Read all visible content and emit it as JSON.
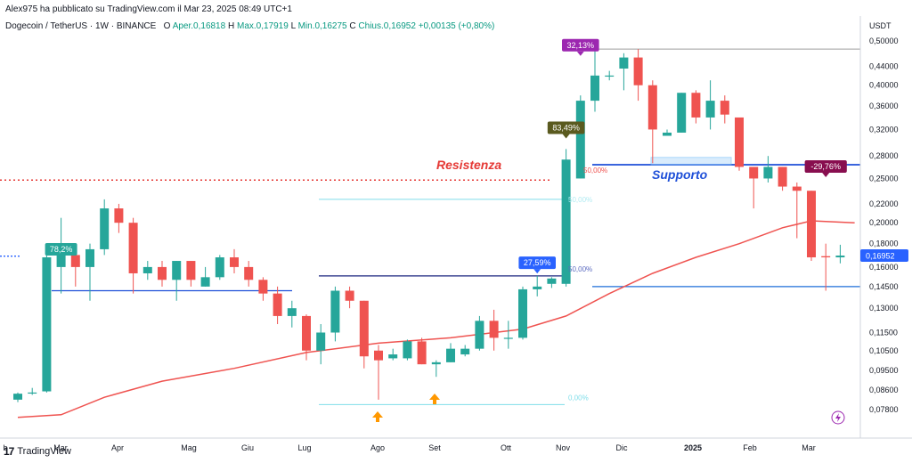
{
  "header": {
    "publish_line": "Alex975 ha pubblicato su TradingView.com il Mar 23, 2025 08:49 UTC+1",
    "symbol": "Dogecoin / TetherUS · 1W · BINANCE",
    "open_label": "O",
    "open_text": "Aper.0,16818",
    "high_label": "H",
    "high_text": "Max.0,17919",
    "low_label": "L",
    "low_text": "Min.0,16275",
    "close_label": "C",
    "close_text": "Chius.0,16952",
    "change_text": "+0,00135 (+0,80%)"
  },
  "footer": {
    "logo_text": "TradingView"
  },
  "colors": {
    "up": "#26a69a",
    "down": "#ef5350",
    "ma": "#ef5350",
    "support": "#1e4fd8",
    "resistance": "#e53935"
  },
  "chart_data": {
    "type": "candlestick",
    "title": "Dogecoin / TetherUS",
    "interval": "1W",
    "exchange": "BINANCE",
    "y_unit": "USDT",
    "y_scale": "log",
    "y_ticks": [
      "0,50000",
      "0,44000",
      "0,40000",
      "0,36000",
      "0,32000",
      "0,28000",
      "0,25000",
      "0,22000",
      "0,20000",
      "0,18000",
      "0,16000",
      "0,14500",
      "0,13000",
      "0,11500",
      "0,10500",
      "0,09500",
      "0,08600",
      "0,07800"
    ],
    "x_ticks": [
      "b",
      "Mar",
      "Apr",
      "Mag",
      "Giu",
      "Lug",
      "Ago",
      "Set",
      "Ott",
      "Nov",
      "Dic",
      "2025",
      "Feb",
      "Mar"
    ],
    "last_price": "0,16952",
    "candles": [
      [
        0.082,
        0.085,
        0.081,
        0.0845
      ],
      [
        0.085,
        0.087,
        0.084,
        0.085
      ],
      [
        0.0855,
        0.175,
        0.085,
        0.168
      ],
      [
        0.16,
        0.205,
        0.14,
        0.17
      ],
      [
        0.17,
        0.175,
        0.145,
        0.16
      ],
      [
        0.16,
        0.18,
        0.135,
        0.175
      ],
      [
        0.175,
        0.225,
        0.17,
        0.215
      ],
      [
        0.215,
        0.22,
        0.19,
        0.2
      ],
      [
        0.2,
        0.205,
        0.14,
        0.155
      ],
      [
        0.155,
        0.165,
        0.15,
        0.16
      ],
      [
        0.16,
        0.165,
        0.145,
        0.15
      ],
      [
        0.15,
        0.165,
        0.135,
        0.165
      ],
      [
        0.165,
        0.165,
        0.145,
        0.15
      ],
      [
        0.145,
        0.16,
        0.145,
        0.152
      ],
      [
        0.152,
        0.17,
        0.15,
        0.168
      ],
      [
        0.168,
        0.175,
        0.155,
        0.16
      ],
      [
        0.16,
        0.165,
        0.145,
        0.15
      ],
      [
        0.15,
        0.152,
        0.135,
        0.14
      ],
      [
        0.14,
        0.145,
        0.12,
        0.125
      ],
      [
        0.125,
        0.135,
        0.118,
        0.13
      ],
      [
        0.125,
        0.126,
        0.1,
        0.105
      ],
      [
        0.105,
        0.12,
        0.098,
        0.115
      ],
      [
        0.115,
        0.145,
        0.11,
        0.142
      ],
      [
        0.142,
        0.145,
        0.13,
        0.135
      ],
      [
        0.135,
        0.135,
        0.096,
        0.102
      ],
      [
        0.105,
        0.108,
        0.082,
        0.1
      ],
      [
        0.101,
        0.106,
        0.1,
        0.103
      ],
      [
        0.101,
        0.111,
        0.1,
        0.11
      ],
      [
        0.11,
        0.112,
        0.098,
        0.098
      ],
      [
        0.098,
        0.1,
        0.092,
        0.099
      ],
      [
        0.099,
        0.109,
        0.099,
        0.106
      ],
      [
        0.103,
        0.108,
        0.102,
        0.106
      ],
      [
        0.106,
        0.125,
        0.105,
        0.122
      ],
      [
        0.122,
        0.129,
        0.105,
        0.112
      ],
      [
        0.112,
        0.122,
        0.106,
        0.112
      ],
      [
        0.112,
        0.145,
        0.111,
        0.143
      ],
      [
        0.143,
        0.153,
        0.138,
        0.145
      ],
      [
        0.147,
        0.152,
        0.144,
        0.151
      ],
      [
        0.147,
        0.29,
        0.145,
        0.275
      ],
      [
        0.25,
        0.38,
        0.25,
        0.37
      ],
      [
        0.37,
        0.48,
        0.35,
        0.42
      ],
      [
        0.42,
        0.43,
        0.41,
        0.42
      ],
      [
        0.435,
        0.47,
        0.39,
        0.46
      ],
      [
        0.46,
        0.48,
        0.37,
        0.4
      ],
      [
        0.4,
        0.41,
        0.27,
        0.32
      ],
      [
        0.31,
        0.32,
        0.31,
        0.315
      ],
      [
        0.315,
        0.385,
        0.315,
        0.385
      ],
      [
        0.385,
        0.39,
        0.33,
        0.34
      ],
      [
        0.34,
        0.41,
        0.32,
        0.37
      ],
      [
        0.37,
        0.38,
        0.33,
        0.345
      ],
      [
        0.34,
        0.34,
        0.26,
        0.265
      ],
      [
        0.265,
        0.265,
        0.215,
        0.25
      ],
      [
        0.25,
        0.28,
        0.245,
        0.265
      ],
      [
        0.265,
        0.265,
        0.235,
        0.24
      ],
      [
        0.24,
        0.245,
        0.185,
        0.235
      ],
      [
        0.235,
        0.235,
        0.165,
        0.168
      ],
      [
        0.169,
        0.18,
        0.142,
        0.168
      ],
      [
        0.168,
        0.179,
        0.163,
        0.1695
      ]
    ],
    "moving_average": [
      [
        0,
        0.075
      ],
      [
        3,
        0.076
      ],
      [
        6,
        0.083
      ],
      [
        10,
        0.09
      ],
      [
        15,
        0.096
      ],
      [
        20,
        0.104
      ],
      [
        25,
        0.109
      ],
      [
        30,
        0.112
      ],
      [
        35,
        0.117
      ],
      [
        38,
        0.125
      ],
      [
        41,
        0.14
      ],
      [
        44,
        0.155
      ],
      [
        47,
        0.168
      ],
      [
        50,
        0.18
      ],
      [
        53,
        0.195
      ],
      [
        55,
        0.202
      ],
      [
        58,
        0.2
      ]
    ],
    "labels": [
      {
        "text": "78,2%",
        "candle": 3,
        "price": 0.168,
        "color": "#26a69a"
      },
      {
        "text": "27,59%",
        "candle": 36,
        "price": 0.157,
        "color": "#2962ff"
      },
      {
        "text": "83,49%",
        "candle": 38,
        "price": 0.31,
        "color": "#5a5a1f"
      },
      {
        "text": "32,13%",
        "candle": 39,
        "price": 0.47,
        "color": "#9c27b0"
      },
      {
        "text": "-29,76%",
        "candle": 56,
        "price": 0.255,
        "color": "#880e4f"
      }
    ],
    "annotations": {
      "resistance_text": "Resistenza",
      "support_text": "Supporto",
      "fib_labels": [
        "50,00%",
        "50,00%",
        "0,00%"
      ],
      "resistance_price": 0.248,
      "support_price": 0.268,
      "low_support_price": 0.145,
      "left_support_price": 0.142,
      "fib_top_price": 0.225,
      "fib_mid_price": 0.153,
      "fib_bottom_price": 0.08,
      "top_line_price": 0.48
    }
  }
}
